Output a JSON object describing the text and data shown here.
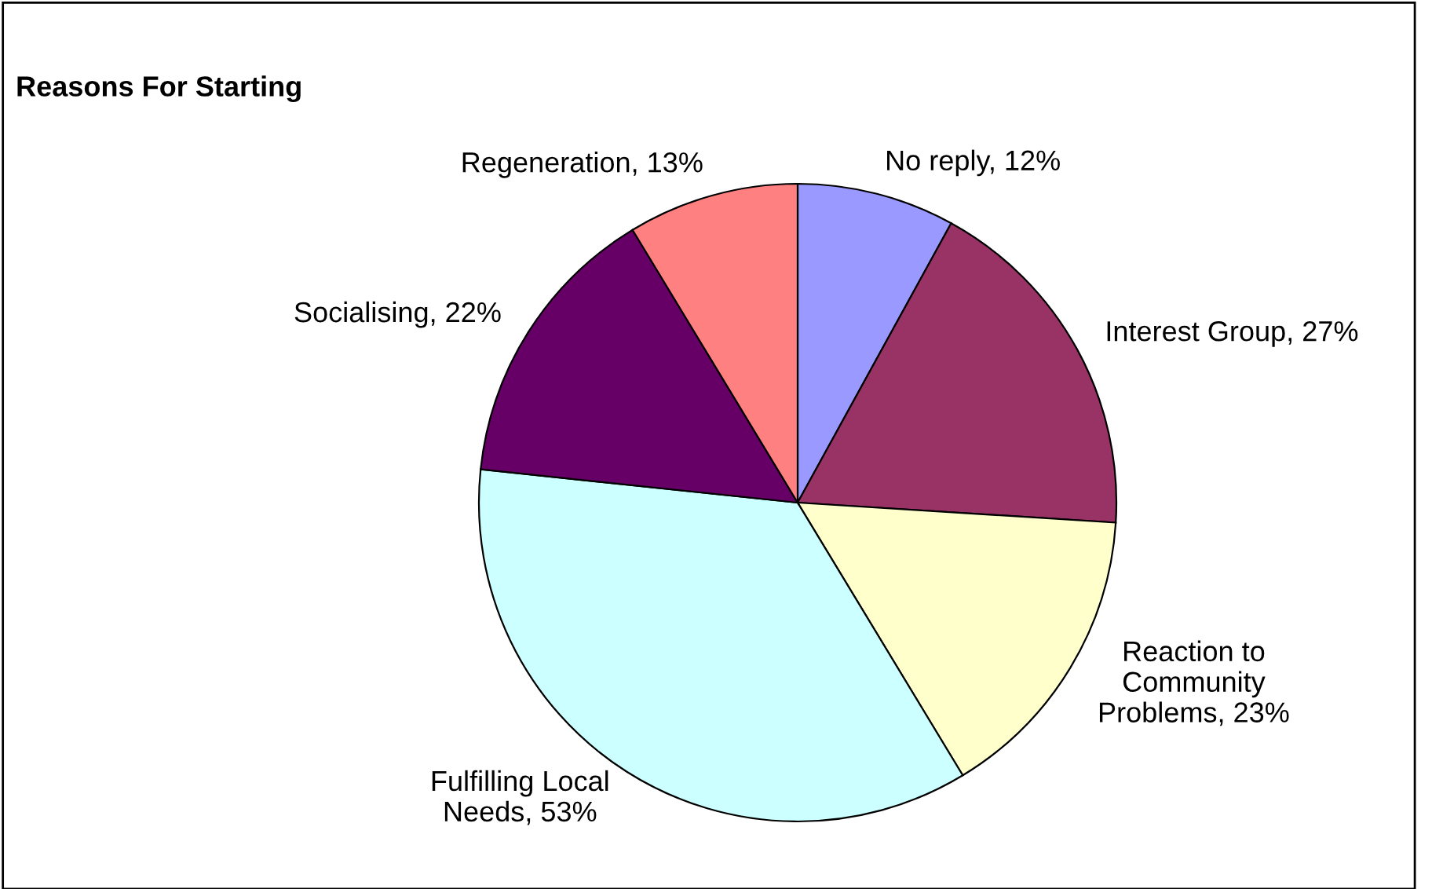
{
  "chart_data": {
    "type": "pie",
    "title": "Reasons For Starting",
    "categories": [
      "No reply",
      "Interest Group",
      "Reaction to\nCommunity\nProblems",
      "Fulfilling Local\nNeeds",
      "Socialising",
      "Regeneration"
    ],
    "values": [
      12,
      27,
      23,
      53,
      22,
      13
    ],
    "value_labels": [
      "12%",
      "27%",
      "23%",
      "53%",
      "22%",
      "13%"
    ],
    "colors": [
      "#9999ff",
      "#993366",
      "#ffffcc",
      "#ccffff",
      "#660066",
      "#ff8080"
    ],
    "legend": false
  }
}
